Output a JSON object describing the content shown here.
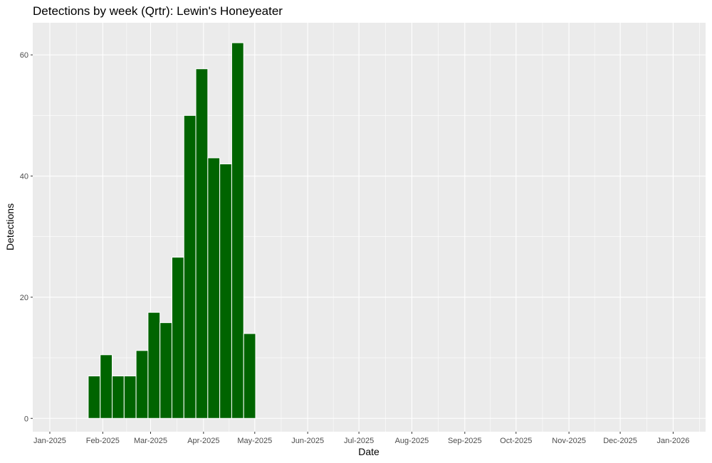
{
  "chart_data": {
    "type": "bar",
    "title": "Detections by week (Qrtr): Lewin's Honeyeater",
    "xlabel": "Date",
    "ylabel": "Detections",
    "x_ticks": [
      "Jan-2025",
      "Feb-2025",
      "Mar-2025",
      "Apr-2025",
      "May-2025",
      "Jun-2025",
      "Jul-2025",
      "Aug-2025",
      "Sep-2025",
      "Oct-2025",
      "Nov-2025",
      "Dec-2025",
      "Jan-2026"
    ],
    "x_range": [
      "2024-12-22",
      "2026-01-20"
    ],
    "y_ticks": [
      0,
      20,
      40,
      60
    ],
    "ylim": [
      -2.2,
      65.3
    ],
    "grid": true,
    "bar_color": "#006400",
    "panel_color": "#EBEBEB",
    "x": [
      "2025-01-27",
      "2025-02-03",
      "2025-02-10",
      "2025-02-17",
      "2025-02-24",
      "2025-03-03",
      "2025-03-10",
      "2025-03-17",
      "2025-03-24",
      "2025-03-31",
      "2025-04-07",
      "2025-04-14",
      "2025-04-21",
      "2025-04-28"
    ],
    "values": [
      7,
      10.5,
      7,
      7,
      11.2,
      17.5,
      15.8,
      26.6,
      50,
      57.7,
      43,
      42,
      62,
      14
    ]
  }
}
